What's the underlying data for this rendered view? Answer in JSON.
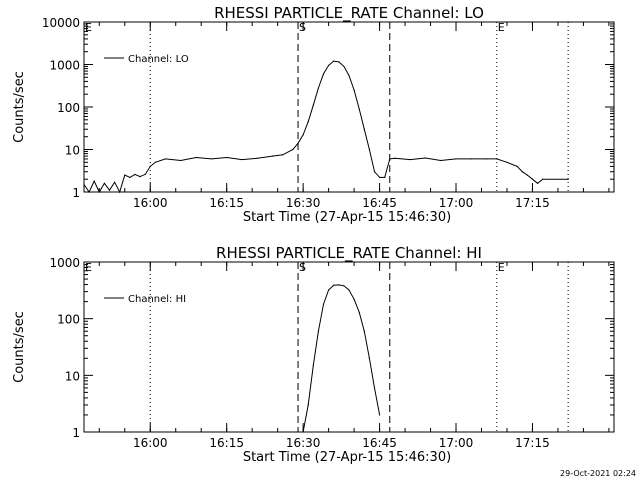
{
  "footer": {
    "timestamp": "29-Oct-2021 02:24"
  },
  "chart_data": [
    {
      "type": "line",
      "title": "RHESSI PARTICLE_RATE Channel: LO",
      "xlabel": "Start Time (27-Apr-15 15:46:30)",
      "ylabel": "Counts/sec",
      "y_scale": "log",
      "ylim": [
        1,
        10000
      ],
      "xlim": [
        "15:47",
        "17:31"
      ],
      "x_ticks": [
        "16:00",
        "16:15",
        "16:30",
        "16:45",
        "17:00",
        "17:15"
      ],
      "y_ticks": [
        "1",
        "10",
        "100",
        "1000",
        "10000"
      ],
      "grid": false,
      "legend": {
        "position": "top-left",
        "entries": [
          "Channel: LO"
        ]
      },
      "markers": [
        {
          "label": "E",
          "time": "15:47",
          "style": "dotted"
        },
        {
          "label": "",
          "time": "16:00",
          "style": "dotted"
        },
        {
          "label": "S",
          "time": "16:29",
          "style": "dashed"
        },
        {
          "label": "",
          "time": "16:47",
          "style": "dashed"
        },
        {
          "label": "E",
          "time": "17:08",
          "style": "dotted"
        },
        {
          "label": "",
          "time": "17:22",
          "style": "dotted"
        }
      ],
      "series": [
        {
          "name": "Channel: LO",
          "x": [
            "15:47",
            "15:48",
            "15:49",
            "15:50",
            "15:51",
            "15:52",
            "15:53",
            "15:54",
            "15:55",
            "15:56",
            "15:57",
            "15:58",
            "15:59",
            "16:00",
            "16:01",
            "16:03",
            "16:06",
            "16:09",
            "16:12",
            "16:15",
            "16:18",
            "16:21",
            "16:24",
            "16:26",
            "16:28",
            "16:29",
            "16:30",
            "16:31",
            "16:32",
            "16:33",
            "16:34",
            "16:35",
            "16:36",
            "16:37",
            "16:38",
            "16:39",
            "16:40",
            "16:41",
            "16:42",
            "16:43",
            "16:44",
            "16:45",
            "16:46",
            "16:47",
            "16:48",
            "16:51",
            "16:54",
            "16:57",
            "17:00",
            "17:03",
            "17:06",
            "17:08",
            "17:10",
            "17:12",
            "17:13",
            "17:14",
            "17:15",
            "17:16",
            "17:17",
            "17:22"
          ],
          "values": [
            1.5,
            1,
            1.8,
            1,
            1.6,
            1.1,
            1.7,
            1,
            2.5,
            2.2,
            2.6,
            2.3,
            2.6,
            4,
            5,
            6,
            5.5,
            6.5,
            6,
            6.5,
            5.8,
            6.2,
            7,
            7.5,
            10,
            14,
            22,
            45,
            110,
            280,
            600,
            950,
            1200,
            1150,
            900,
            550,
            250,
            90,
            30,
            10,
            3,
            2.2,
            2.2,
            6,
            6.2,
            5.8,
            6.3,
            5.5,
            6,
            6,
            6,
            6,
            5,
            4,
            3,
            2.5,
            2,
            1.6,
            2,
            2
          ]
        }
      ]
    },
    {
      "type": "line",
      "title": "RHESSI PARTICLE_RATE Channel: HI",
      "xlabel": "Start Time (27-Apr-15 15:46:30)",
      "ylabel": "Counts/sec",
      "y_scale": "log",
      "ylim": [
        1,
        1000
      ],
      "xlim": [
        "15:47",
        "17:31"
      ],
      "x_ticks": [
        "16:00",
        "16:15",
        "16:30",
        "16:45",
        "17:00",
        "17:15"
      ],
      "y_ticks": [
        "1",
        "10",
        "100",
        "1000"
      ],
      "grid": false,
      "legend": {
        "position": "top-left",
        "entries": [
          "Channel: HI"
        ]
      },
      "markers": [
        {
          "label": "E",
          "time": "15:47",
          "style": "dotted"
        },
        {
          "label": "",
          "time": "16:00",
          "style": "dotted"
        },
        {
          "label": "S",
          "time": "16:29",
          "style": "dashed"
        },
        {
          "label": "",
          "time": "16:47",
          "style": "dashed"
        },
        {
          "label": "E",
          "time": "17:08",
          "style": "dotted"
        },
        {
          "label": "",
          "time": "17:22",
          "style": "dotted"
        }
      ],
      "series": [
        {
          "name": "Channel: HI",
          "x": [
            "16:30",
            "16:31",
            "16:32",
            "16:33",
            "16:34",
            "16:35",
            "16:36",
            "16:37",
            "16:38",
            "16:39",
            "16:40",
            "16:41",
            "16:42",
            "16:43",
            "16:44",
            "16:45"
          ],
          "values": [
            1,
            3,
            15,
            60,
            180,
            320,
            390,
            395,
            380,
            320,
            220,
            130,
            60,
            20,
            6,
            2
          ]
        }
      ]
    }
  ]
}
